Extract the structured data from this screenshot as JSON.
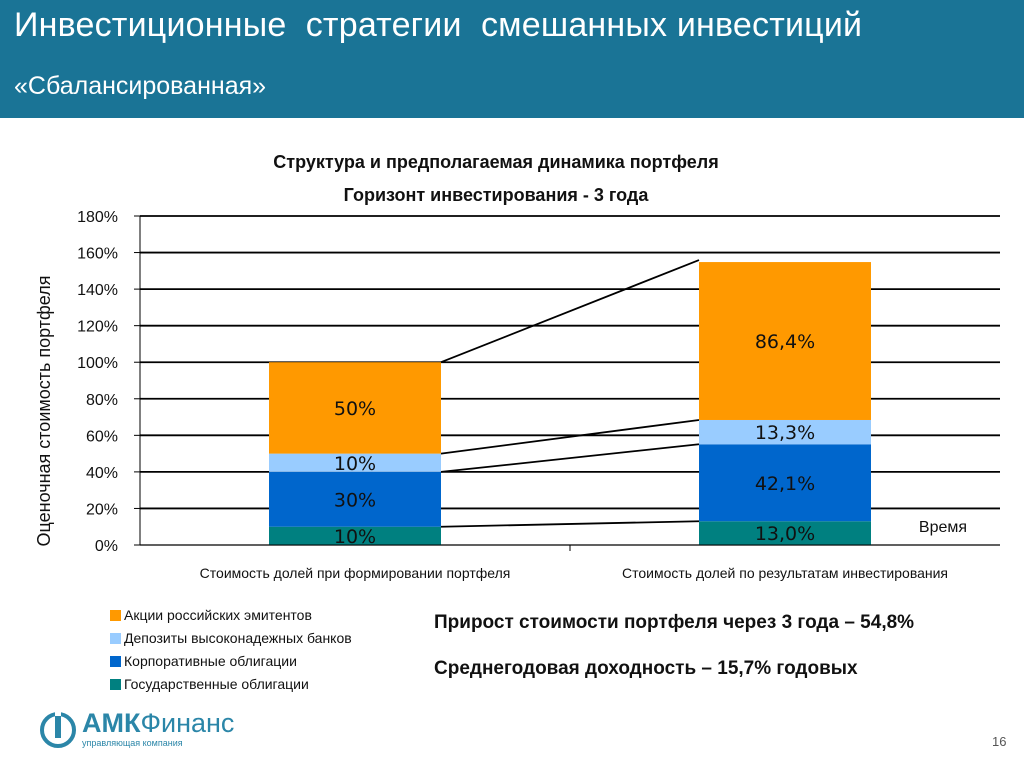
{
  "header": {
    "title": "Инвестиционные  стратегии  смешанных инвестиций",
    "subtitle": "«Сбалансированная»"
  },
  "colors": {
    "header_bg": "#1a7496",
    "stocks": "#ff9900",
    "deposits": "#99ccff",
    "corporate_bonds": "#0066cc",
    "government_bonds": "#008080"
  },
  "chart_data": {
    "type": "bar",
    "stacked": true,
    "title": "Структура  и предполагаемая динамика  портфеля",
    "subtitle": "Горизонт инвестирования   - 3 года",
    "ylabel": "Оценочная стоимость портфеля",
    "xlabel": "",
    "annotation": "Время",
    "ylim": [
      0,
      180
    ],
    "yticks": [
      "0%",
      "20%",
      "40%",
      "60%",
      "80%",
      "100%",
      "120%",
      "140%",
      "160%",
      "180%"
    ],
    "grid": true,
    "categories": [
      "Стоимость долей при формировании портфеля",
      "Стоимость долей по результатам инвестирования"
    ],
    "series": [
      {
        "name": "Государственные облигации",
        "color": "#008080",
        "values": [
          10,
          13.0
        ],
        "labels": [
          "10%",
          "13,0%"
        ]
      },
      {
        "name": "Корпоративные облигации",
        "color": "#0066cc",
        "values": [
          30,
          42.1
        ],
        "labels": [
          "30%",
          "42,1%"
        ]
      },
      {
        "name": "Депозиты высоконадежных банков",
        "color": "#99ccff",
        "values": [
          10,
          13.3
        ],
        "labels": [
          "10%",
          "13,3%"
        ]
      },
      {
        "name": "Акции российских эмитентов",
        "color": "#ff9900",
        "values": [
          50,
          86.4
        ],
        "labels": [
          "50%",
          "86,4%"
        ]
      }
    ]
  },
  "legend": {
    "items": [
      {
        "label": "Акции российских эмитентов",
        "color": "#ff9900"
      },
      {
        "label": "Депозиты высоконадежных банков",
        "color": "#99ccff"
      },
      {
        "label": "Корпоративные облигации",
        "color": "#0066cc"
      },
      {
        "label": "Государственные облигации",
        "color": "#008080"
      }
    ]
  },
  "summary": {
    "growth": "Прирост стоимости портфеля через 3 года – 54,8%",
    "annual_yield": "Среднегодовая доходность – 15,7% годовых"
  },
  "logo": {
    "brand_bold": "АМК",
    "brand_light": "Финанс",
    "tagline": "управляющая компания"
  },
  "page_number": "16"
}
